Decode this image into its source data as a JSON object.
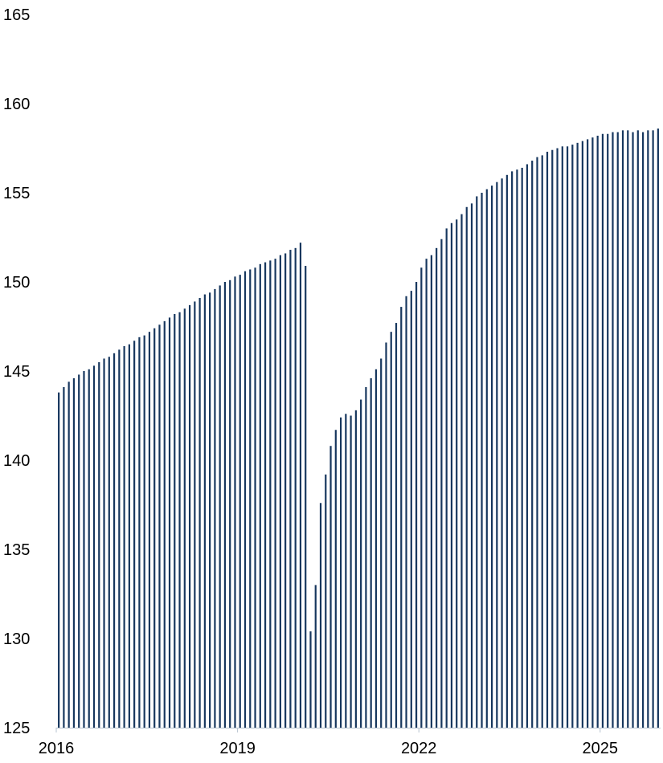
{
  "chart_data": {
    "type": "bar",
    "title": "",
    "xlabel": "",
    "ylabel": "",
    "ylim": [
      125,
      165
    ],
    "yticks": [
      125,
      130,
      135,
      140,
      145,
      150,
      155,
      160,
      165
    ],
    "xtick_labels": [
      {
        "label": "2016",
        "index": 0
      },
      {
        "label": "2019",
        "index": 36
      },
      {
        "label": "2022",
        "index": 72
      },
      {
        "label": "2025",
        "index": 108
      }
    ],
    "x_start": "2016-01",
    "x_end": "2025-12",
    "frequency": "monthly",
    "grid": false,
    "legend": "none",
    "bar_color": "#17375e",
    "values": [
      143.8,
      144.1,
      144.4,
      144.6,
      144.8,
      145.0,
      145.1,
      145.3,
      145.5,
      145.7,
      145.8,
      146.0,
      146.2,
      146.4,
      146.5,
      146.7,
      146.9,
      147.0,
      147.2,
      147.4,
      147.6,
      147.8,
      148.0,
      148.2,
      148.3,
      148.5,
      148.7,
      148.9,
      149.1,
      149.3,
      149.4,
      149.6,
      149.8,
      150.0,
      150.1,
      150.3,
      150.4,
      150.6,
      150.7,
      150.8,
      151.0,
      151.1,
      151.2,
      151.3,
      151.5,
      151.6,
      151.8,
      151.9,
      152.2,
      150.9,
      130.4,
      133.0,
      137.6,
      139.2,
      140.8,
      141.7,
      142.4,
      142.6,
      142.5,
      142.8,
      143.4,
      144.1,
      144.6,
      145.1,
      145.7,
      146.6,
      147.2,
      147.7,
      148.6,
      149.2,
      149.5,
      150.0,
      150.8,
      151.3,
      151.5,
      151.9,
      152.4,
      153.0,
      153.3,
      153.5,
      153.8,
      154.2,
      154.4,
      154.8,
      155.0,
      155.2,
      155.4,
      155.6,
      155.8,
      156.0,
      156.2,
      156.3,
      156.4,
      156.6,
      156.8,
      157.0,
      157.1,
      157.3,
      157.4,
      157.5,
      157.6,
      157.6,
      157.7,
      157.8,
      157.9,
      158.0,
      158.1,
      158.2,
      158.3,
      158.3,
      158.4,
      158.4,
      158.5,
      158.5,
      158.4,
      158.5,
      158.4,
      158.5,
      158.5,
      158.6
    ]
  }
}
